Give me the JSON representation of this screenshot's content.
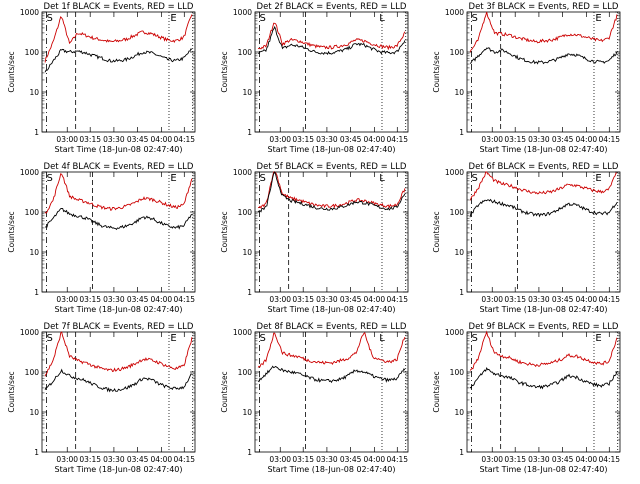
{
  "chart_data": [
    {
      "type": "line",
      "title": "Det 1f BLACK = Events, RED = LLD",
      "xlabel": "Start Time (18-Jun-08 02:47:40)",
      "ylabel": "Counts/sec",
      "yscale": "log",
      "ylim": [
        1,
        1000
      ],
      "x_ticks": [
        "03:00",
        "03:15",
        "03:30",
        "03:45",
        "04:00",
        "04:15"
      ],
      "y_ticks": [
        "1",
        "10",
        "100",
        "1000"
      ],
      "markers": {
        "S": "S",
        "E": "E",
        "L": ""
      },
      "series": [
        {
          "color": "#cc0000",
          "values": [
            60,
            180,
            820,
            160,
            300,
            260,
            220,
            200,
            180,
            190,
            210,
            260,
            320,
            290,
            240,
            200,
            190,
            230,
            900
          ]
        },
        {
          "color": "#000000",
          "values": [
            30,
            60,
            110,
            100,
            105,
            95,
            80,
            70,
            60,
            60,
            65,
            80,
            100,
            95,
            80,
            65,
            60,
            70,
            120
          ]
        }
      ]
    },
    {
      "type": "line",
      "title": "Det 2f BLACK = Events, RED = LLD",
      "xlabel": "Start Time (18-Jun-08 02:47:40)",
      "ylabel": "Counts/sec",
      "yscale": "log",
      "ylim": [
        1,
        1000
      ],
      "x_ticks": [
        "03:00",
        "03:15",
        "03:30",
        "03:45",
        "04:00",
        "04:15"
      ],
      "y_ticks": [
        "1",
        "10",
        "100",
        "1000"
      ],
      "markers": {
        "S": "S",
        "E": "",
        "L": "L"
      },
      "series": [
        {
          "color": "#cc0000",
          "values": [
            120,
            140,
            600,
            160,
            200,
            190,
            160,
            140,
            130,
            130,
            140,
            160,
            200,
            190,
            160,
            140,
            130,
            140,
            300
          ]
        },
        {
          "color": "#000000",
          "values": [
            90,
            110,
            420,
            120,
            150,
            140,
            120,
            100,
            95,
            95,
            105,
            120,
            160,
            150,
            120,
            100,
            95,
            100,
            200
          ]
        }
      ]
    },
    {
      "type": "line",
      "title": "Det 3f BLACK = Events, RED = LLD",
      "xlabel": "Start Time (18-Jun-08 02:47:40)",
      "ylabel": "Counts/sec",
      "yscale": "log",
      "ylim": [
        1,
        1000
      ],
      "x_ticks": [
        "03:00",
        "03:15",
        "03:30",
        "03:45",
        "04:00",
        "04:15"
      ],
      "y_ticks": [
        "1",
        "10",
        "100",
        "1000"
      ],
      "markers": {
        "S": "S",
        "E": "E",
        "L": ""
      },
      "series": [
        {
          "color": "#cc0000",
          "values": [
            100,
            200,
            1000,
            300,
            280,
            260,
            220,
            200,
            180,
            190,
            200,
            230,
            280,
            270,
            240,
            210,
            190,
            220,
            800
          ]
        },
        {
          "color": "#000000",
          "values": [
            50,
            80,
            130,
            100,
            110,
            90,
            70,
            60,
            55,
            55,
            60,
            70,
            90,
            85,
            70,
            60,
            55,
            60,
            100
          ]
        }
      ]
    },
    {
      "type": "line",
      "title": "Det 4f BLACK = Events, RED = LLD",
      "xlabel": "Start Time (18-Jun-08 02:47:40)",
      "ylabel": "Counts/sec",
      "yscale": "log",
      "ylim": [
        1,
        1000
      ],
      "x_ticks": [
        "03:00",
        "03:15",
        "03:30",
        "03:45",
        "04:00",
        "04:15"
      ],
      "y_ticks": [
        "1",
        "10",
        "100",
        "1000"
      ],
      "markers": {
        "S": "S",
        "E": "E",
        "L": ""
      },
      "series": [
        {
          "color": "#cc0000",
          "values": [
            90,
            200,
            1000,
            250,
            200,
            180,
            150,
            130,
            120,
            125,
            140,
            170,
            220,
            210,
            180,
            150,
            130,
            150,
            700
          ]
        },
        {
          "color": "#000000",
          "values": [
            40,
            70,
            120,
            90,
            80,
            70,
            55,
            45,
            40,
            40,
            45,
            55,
            75,
            70,
            55,
            45,
            40,
            45,
            90
          ]
        }
      ]
    },
    {
      "type": "line",
      "title": "Det 5f BLACK = Events, RED = LLD",
      "xlabel": "Start Time (18-Jun-08 02:47:40)",
      "ylabel": "Counts/sec",
      "yscale": "log",
      "ylim": [
        1,
        1000
      ],
      "x_ticks": [
        "03:00",
        "03:15",
        "03:30",
        "03:45",
        "04:00",
        "04:15"
      ],
      "y_ticks": [
        "1",
        "10",
        "100",
        "1000"
      ],
      "markers": {
        "S": "S",
        "E": "",
        "L": "L"
      },
      "series": [
        {
          "color": "#cc0000",
          "values": [
            120,
            160,
            1300,
            280,
            220,
            200,
            170,
            150,
            140,
            140,
            150,
            170,
            200,
            190,
            170,
            150,
            140,
            150,
            380
          ]
        },
        {
          "color": "#000000",
          "values": [
            100,
            130,
            1000,
            250,
            190,
            170,
            150,
            130,
            120,
            120,
            130,
            150,
            180,
            170,
            150,
            130,
            120,
            130,
            300
          ]
        }
      ]
    },
    {
      "type": "line",
      "title": "Det 6f BLACK = Events, RED = LLD",
      "xlabel": "Start Time (18-Jun-08 02:47:40)",
      "ylabel": "Counts/sec",
      "yscale": "log",
      "ylim": [
        1,
        1000
      ],
      "x_ticks": [
        "03:00",
        "03:15",
        "03:30",
        "03:45",
        "04:00",
        "04:15"
      ],
      "y_ticks": [
        "1",
        "10",
        "100",
        "1000"
      ],
      "markers": {
        "S": "S",
        "E": "E",
        "L": ""
      },
      "series": [
        {
          "color": "#cc0000",
          "values": [
            200,
            400,
            1000,
            600,
            500,
            450,
            380,
            330,
            300,
            300,
            320,
            380,
            480,
            460,
            400,
            350,
            320,
            360,
            1000
          ]
        },
        {
          "color": "#000000",
          "values": [
            80,
            150,
            200,
            180,
            160,
            140,
            110,
            95,
            85,
            85,
            95,
            120,
            160,
            150,
            120,
            100,
            90,
            95,
            180
          ]
        }
      ]
    },
    {
      "type": "line",
      "title": "Det 7f BLACK = Events, RED = LLD",
      "xlabel": "Start Time (18-Jun-08 02:47:40)",
      "ylabel": "Counts/sec",
      "yscale": "log",
      "ylim": [
        1,
        1000
      ],
      "x_ticks": [
        "03:00",
        "03:15",
        "03:30",
        "03:45",
        "04:00",
        "04:15"
      ],
      "y_ticks": [
        "1",
        "10",
        "100",
        "1000"
      ],
      "markers": {
        "S": "S",
        "E": "E",
        "L": ""
      },
      "series": [
        {
          "color": "#cc0000",
          "values": [
            80,
            200,
            1000,
            250,
            190,
            170,
            140,
            120,
            110,
            115,
            130,
            160,
            210,
            200,
            170,
            140,
            120,
            140,
            700
          ]
        },
        {
          "color": "#000000",
          "values": [
            35,
            60,
            110,
            80,
            70,
            60,
            48,
            40,
            35,
            36,
            40,
            50,
            70,
            65,
            50,
            42,
            38,
            42,
            90
          ]
        }
      ]
    },
    {
      "type": "line",
      "title": "Det 8f BLACK = Events, RED = LLD",
      "xlabel": "Start Time (18-Jun-08 02:47:40)",
      "ylabel": "Counts/sec",
      "yscale": "log",
      "ylim": [
        1,
        1000
      ],
      "x_ticks": [
        "03:00",
        "03:15",
        "03:30",
        "03:45",
        "04:00",
        "04:15"
      ],
      "y_ticks": [
        "1",
        "10",
        "100",
        "1000"
      ],
      "markers": {
        "S": "S",
        "E": "",
        "L": "L"
      },
      "series": [
        {
          "color": "#cc0000",
          "values": [
            120,
            200,
            1000,
            300,
            260,
            240,
            200,
            180,
            170,
            170,
            190,
            220,
            300,
            1000,
            250,
            200,
            180,
            200,
            800
          ]
        },
        {
          "color": "#000000",
          "values": [
            60,
            90,
            140,
            110,
            100,
            90,
            75,
            65,
            60,
            60,
            65,
            80,
            110,
            100,
            80,
            68,
            62,
            68,
            120
          ]
        }
      ]
    },
    {
      "type": "line",
      "title": "Det 9f BLACK = Events, RED = LLD",
      "xlabel": "Start Time (18-Jun-08 02:47:40)",
      "ylabel": "Counts/sec",
      "yscale": "log",
      "ylim": [
        1,
        1000
      ],
      "x_ticks": [
        "03:00",
        "03:15",
        "03:30",
        "03:45",
        "04:00",
        "04:15"
      ],
      "y_ticks": [
        "1",
        "10",
        "100",
        "1000"
      ],
      "markers": {
        "S": "S",
        "E": "E",
        "L": ""
      },
      "series": [
        {
          "color": "#cc0000",
          "values": [
            100,
            220,
            1000,
            300,
            250,
            220,
            180,
            160,
            150,
            155,
            170,
            200,
            260,
            250,
            210,
            180,
            160,
            180,
            700
          ]
        },
        {
          "color": "#000000",
          "values": [
            40,
            70,
            120,
            90,
            80,
            70,
            55,
            48,
            42,
            43,
            48,
            58,
            80,
            75,
            60,
            50,
            45,
            50,
            100
          ]
        }
      ]
    }
  ]
}
